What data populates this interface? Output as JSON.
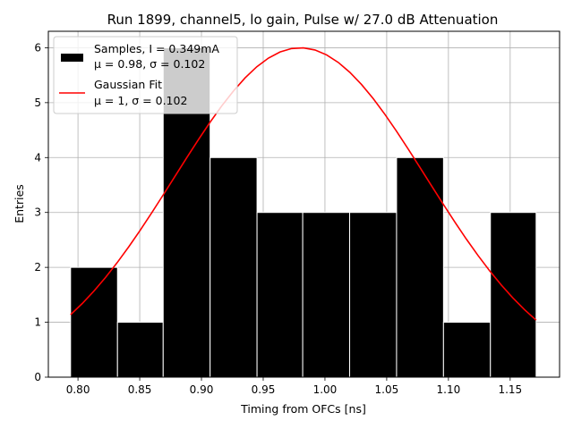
{
  "chart_data": {
    "type": "bar",
    "title": "Run 1899, channel5, lo gain, Pulse w/ 27.0 dB Attenuation",
    "xlabel": "Timing from OFCs [ns]",
    "ylabel": "Entries",
    "xlim": [
      0.776,
      1.19
    ],
    "ylim": [
      0,
      6.3
    ],
    "grid": true,
    "legend_position": "top-left",
    "xticks": [
      "0.80",
      "0.85",
      "0.90",
      "0.95",
      "1.00",
      "1.05",
      "1.10",
      "1.15"
    ],
    "yticks": [
      "0",
      "1",
      "2",
      "3",
      "4",
      "5",
      "6"
    ],
    "histogram": {
      "bin_edges": [
        0.794,
        0.832,
        0.869,
        0.907,
        0.945,
        0.982,
        1.02,
        1.058,
        1.096,
        1.134,
        1.171
      ],
      "counts": [
        2,
        1,
        6,
        4,
        3,
        3,
        3,
        4,
        1,
        3
      ],
      "color": "#000000"
    },
    "gaussian_fit": {
      "amplitude": 6.0,
      "mu": 0.98,
      "sigma": 0.102,
      "x_range": [
        0.794,
        1.171
      ],
      "color": "#ff0000"
    },
    "legend": [
      {
        "line1": "Samples, I = 0.349mA",
        "line2": "μ = 0.98, σ = 0.102",
        "symbol": "bar"
      },
      {
        "line1": "Gaussian Fit",
        "line2": "μ = 1, σ = 0.102",
        "symbol": "line"
      }
    ]
  }
}
